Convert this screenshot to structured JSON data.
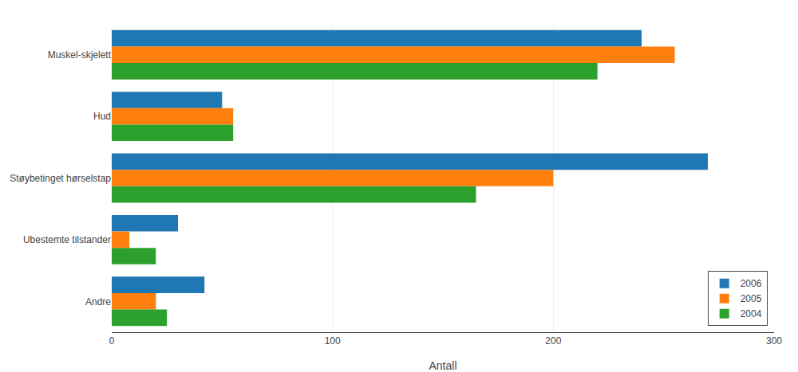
{
  "chart_data": {
    "type": "bar",
    "orientation": "horizontal",
    "categories": [
      "Muskel-skjelett",
      "Hud",
      "Støybetinget hørselstap",
      "Ubestemte tilstander",
      "Andre"
    ],
    "series": [
      {
        "name": "2006",
        "values": [
          240,
          50,
          270,
          30,
          42
        ]
      },
      {
        "name": "2005",
        "values": [
          255,
          55,
          200,
          8,
          20
        ]
      },
      {
        "name": "2004",
        "values": [
          220,
          55,
          165,
          20,
          25
        ]
      }
    ],
    "xlabel": "Antall",
    "xlim": [
      0,
      300
    ],
    "xticks": [
      0,
      100,
      200,
      300
    ],
    "grid": true,
    "legend": "lower right"
  }
}
